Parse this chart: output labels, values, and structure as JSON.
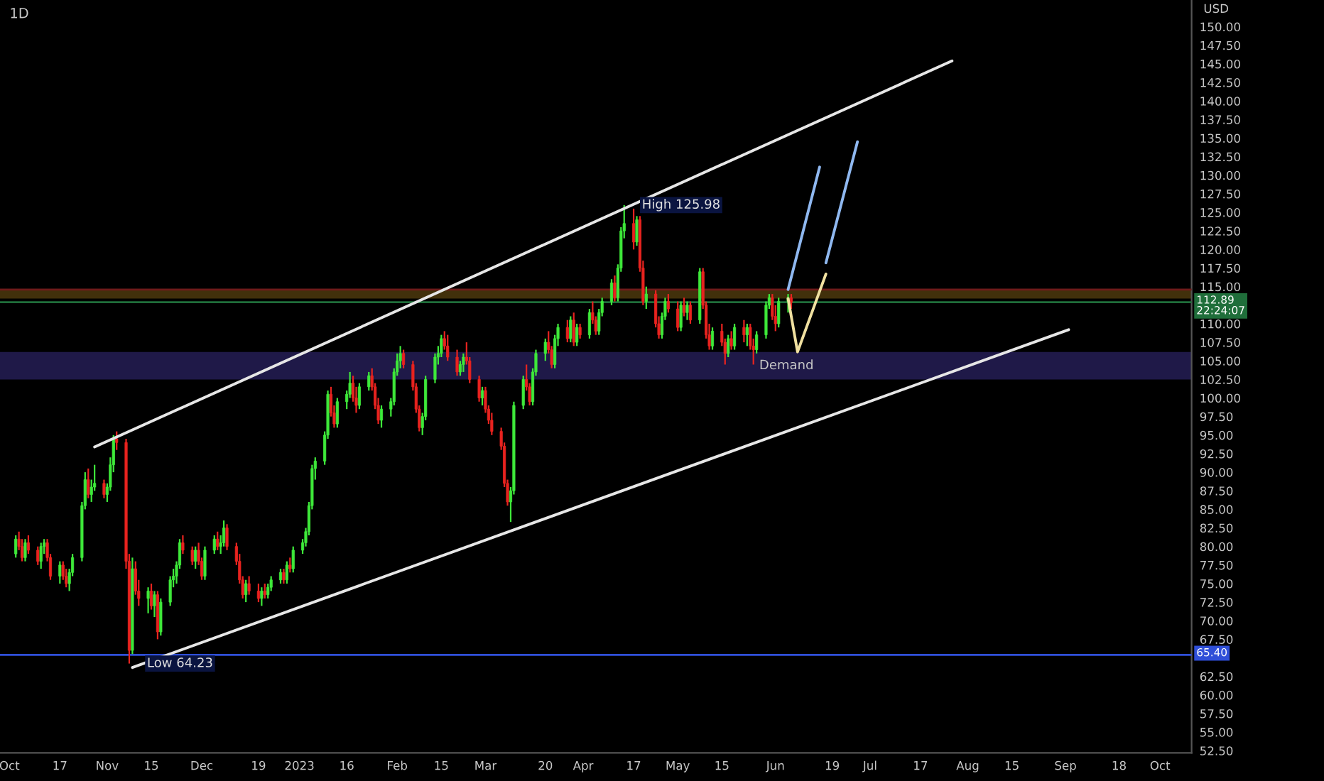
{
  "chart_data": {
    "type": "candlestick",
    "title": "1D",
    "ylabel": "USD",
    "x": [
      "2022-10-03",
      "2022-10-04",
      "2022-10-05",
      "2022-10-06",
      "2022-10-07",
      "2022-10-10",
      "2022-10-11",
      "2022-10-12",
      "2022-10-13",
      "2022-10-14",
      "2022-10-17",
      "2022-10-18",
      "2022-10-19",
      "2022-10-20",
      "2022-10-21",
      "2022-10-24",
      "2022-10-25",
      "2022-10-26",
      "2022-10-27",
      "2022-10-28",
      "2022-10-31",
      "2022-11-01",
      "2022-11-02",
      "2022-11-03",
      "2022-11-04",
      "2022-11-07",
      "2022-11-08",
      "2022-11-09",
      "2022-11-10",
      "2022-11-11",
      "2022-11-14",
      "2022-11-15",
      "2022-11-16",
      "2022-11-17",
      "2022-11-18",
      "2022-11-21",
      "2022-11-22",
      "2022-11-23",
      "2022-11-24",
      "2022-11-25",
      "2022-11-28",
      "2022-11-29",
      "2022-11-30",
      "2022-12-01",
      "2022-12-02",
      "2022-12-05",
      "2022-12-06",
      "2022-12-07",
      "2022-12-08",
      "2022-12-09",
      "2022-12-12",
      "2022-12-13",
      "2022-12-14",
      "2022-12-15",
      "2022-12-16",
      "2022-12-19",
      "2022-12-20",
      "2022-12-21",
      "2022-12-22",
      "2022-12-23",
      "2022-12-26",
      "2022-12-27",
      "2022-12-28",
      "2022-12-29",
      "2022-12-30",
      "2023-01-02",
      "2023-01-03",
      "2023-01-04",
      "2023-01-05",
      "2023-01-06",
      "2023-01-09",
      "2023-01-10",
      "2023-01-11",
      "2023-01-12",
      "2023-01-13",
      "2023-01-16",
      "2023-01-17",
      "2023-01-18",
      "2023-01-19",
      "2023-01-20",
      "2023-01-23",
      "2023-01-24",
      "2023-01-25",
      "2023-01-26",
      "2023-01-27",
      "2023-01-30",
      "2023-01-31",
      "2023-02-01",
      "2023-02-02",
      "2023-02-03",
      "2023-02-06",
      "2023-02-07",
      "2023-02-08",
      "2023-02-09",
      "2023-02-10",
      "2023-02-13",
      "2023-02-14",
      "2023-02-15",
      "2023-02-16",
      "2023-02-17",
      "2023-02-20",
      "2023-02-21",
      "2023-02-22",
      "2023-02-23",
      "2023-02-24",
      "2023-02-27",
      "2023-02-28",
      "2023-03-01",
      "2023-03-02",
      "2023-03-03",
      "2023-03-06",
      "2023-03-07",
      "2023-03-08",
      "2023-03-09",
      "2023-03-10",
      "2023-03-13",
      "2023-03-14",
      "2023-03-15",
      "2023-03-16",
      "2023-03-17",
      "2023-03-20",
      "2023-03-21",
      "2023-03-22",
      "2023-03-23",
      "2023-03-24",
      "2023-03-27",
      "2023-03-28",
      "2023-03-29",
      "2023-03-30",
      "2023-03-31",
      "2023-04-03",
      "2023-04-04",
      "2023-04-05",
      "2023-04-06",
      "2023-04-07",
      "2023-04-10",
      "2023-04-11",
      "2023-04-12",
      "2023-04-13",
      "2023-04-14",
      "2023-04-17",
      "2023-04-18",
      "2023-04-19",
      "2023-04-20",
      "2023-04-21",
      "2023-04-24",
      "2023-04-25",
      "2023-04-26",
      "2023-04-27",
      "2023-04-28",
      "2023-05-01",
      "2023-05-02",
      "2023-05-03",
      "2023-05-04",
      "2023-05-05",
      "2023-05-08",
      "2023-05-09",
      "2023-05-10",
      "2023-05-11",
      "2023-05-12",
      "2023-05-15",
      "2023-05-16",
      "2023-05-17",
      "2023-05-18",
      "2023-05-19",
      "2023-05-22",
      "2023-05-23",
      "2023-05-24",
      "2023-05-25",
      "2023-05-26",
      "2023-05-29",
      "2023-05-30",
      "2023-05-31",
      "2023-06-01",
      "2023-06-02",
      "2023-06-05",
      "2023-06-06"
    ],
    "ohlc": [
      [
        79,
        81.5,
        78.5,
        81
      ],
      [
        81,
        82,
        79.5,
        80
      ],
      [
        80,
        81,
        78,
        78.5
      ],
      [
        78.5,
        81,
        78,
        80.5
      ],
      [
        80.5,
        81.5,
        79,
        79.5
      ],
      [
        79.5,
        80,
        77.5,
        78
      ],
      [
        78,
        80.5,
        77,
        80
      ],
      [
        80,
        81,
        79,
        80.5
      ],
      [
        80.5,
        81,
        78,
        78.5
      ],
      [
        78.5,
        79,
        75.5,
        76
      ],
      [
        76,
        78,
        75,
        77.5
      ],
      [
        77.5,
        78,
        75.5,
        76
      ],
      [
        76,
        77,
        74.5,
        75
      ],
      [
        75,
        77,
        74,
        76.5
      ],
      [
        76.5,
        79,
        76,
        78.5
      ],
      [
        78.5,
        86,
        78,
        85.5
      ],
      [
        85.5,
        90,
        85,
        89
      ],
      [
        89,
        90.5,
        86.5,
        87
      ],
      [
        87,
        89,
        86,
        88
      ],
      [
        88,
        91,
        87.5,
        88.5
      ],
      [
        88.5,
        89,
        86.5,
        87
      ],
      [
        87,
        88.5,
        86,
        88
      ],
      [
        88,
        92,
        87.5,
        91
      ],
      [
        91,
        95,
        90,
        94.5
      ],
      [
        94.5,
        95.5,
        93,
        94
      ],
      [
        94,
        94.5,
        77,
        78
      ],
      [
        78,
        79,
        64.23,
        66
      ],
      [
        66,
        78.5,
        65.5,
        77
      ],
      [
        77,
        78,
        73.5,
        74
      ],
      [
        74,
        75.5,
        72,
        73
      ],
      [
        73,
        74.5,
        71,
        74
      ],
      [
        74,
        75,
        71.5,
        72
      ],
      [
        72,
        74,
        70.5,
        73.5
      ],
      [
        73.5,
        74,
        67.5,
        68.5
      ],
      [
        68.5,
        73,
        68,
        72.5
      ],
      [
        72.5,
        76,
        72,
        75.5
      ],
      [
        75.5,
        77,
        74.5,
        76
      ],
      [
        76,
        78,
        75,
        77.5
      ],
      [
        77.5,
        81,
        77,
        80.5
      ],
      [
        80.5,
        81.5,
        79,
        79.5
      ],
      [
        79.5,
        80,
        77.5,
        78
      ],
      [
        78,
        80,
        77,
        79.5
      ],
      [
        79.5,
        80.5,
        77.5,
        78
      ],
      [
        78,
        78.5,
        75.5,
        76
      ],
      [
        76,
        80,
        75.5,
        79.5
      ],
      [
        79.5,
        81.5,
        79,
        81
      ],
      [
        81,
        82,
        79.5,
        80
      ],
      [
        80,
        81.5,
        79,
        80.5
      ],
      [
        80.5,
        83.5,
        80,
        82.5
      ],
      [
        82.5,
        83,
        79.5,
        80
      ],
      [
        80,
        80.5,
        77.5,
        78
      ],
      [
        78,
        79,
        75,
        75.5
      ],
      [
        75.5,
        76,
        73,
        73.5
      ],
      [
        73.5,
        75.5,
        72.5,
        75
      ],
      [
        75,
        76,
        73.5,
        74
      ],
      [
        74,
        75,
        72.5,
        73
      ],
      [
        73,
        74.5,
        72,
        74
      ],
      [
        74,
        75,
        73,
        73.5
      ],
      [
        73.5,
        75,
        73,
        74.5
      ],
      [
        74.5,
        76,
        74,
        75.5
      ],
      [
        75.5,
        77,
        75,
        76.5
      ],
      [
        76.5,
        77,
        75,
        75.5
      ],
      [
        75.5,
        78,
        75,
        77.5
      ],
      [
        77.5,
        78.5,
        76.5,
        77
      ],
      [
        77,
        80,
        76.5,
        79.5
      ],
      [
        79.5,
        81,
        79,
        80.5
      ],
      [
        80.5,
        82.5,
        80,
        82
      ],
      [
        82,
        86,
        81.5,
        85.5
      ],
      [
        85.5,
        91,
        85,
        90.5
      ],
      [
        90.5,
        92,
        89,
        91.5
      ],
      [
        91.5,
        95.5,
        91,
        95
      ],
      [
        95,
        101,
        94.5,
        100.5
      ],
      [
        100.5,
        101.5,
        97.5,
        98
      ],
      [
        98,
        99,
        96,
        96.5
      ],
      [
        96.5,
        100,
        96,
        99.5
      ],
      [
        99.5,
        101,
        98.5,
        100.5
      ],
      [
        100.5,
        103.5,
        100,
        102
      ],
      [
        102,
        103,
        99.5,
        100
      ],
      [
        100,
        101.5,
        98,
        99
      ],
      [
        99,
        102,
        98.5,
        101.5
      ],
      [
        101.5,
        103.5,
        101,
        103
      ],
      [
        103,
        104,
        101,
        101.5
      ],
      [
        101.5,
        102,
        98.5,
        99
      ],
      [
        99,
        100,
        96.5,
        97
      ],
      [
        97,
        99,
        96,
        98.5
      ],
      [
        98.5,
        100,
        97.5,
        99.5
      ],
      [
        99.5,
        104,
        99,
        103.5
      ],
      [
        103.5,
        106,
        103,
        105
      ],
      [
        105,
        107,
        104,
        106
      ],
      [
        106,
        106.5,
        104,
        104.5
      ],
      [
        104.5,
        105,
        101,
        101.5
      ],
      [
        101.5,
        102,
        98,
        98.5
      ],
      [
        98.5,
        99,
        95.5,
        96
      ],
      [
        96,
        98,
        95,
        97.5
      ],
      [
        97.5,
        103,
        97,
        102.5
      ],
      [
        102.5,
        106,
        102,
        105.5
      ],
      [
        105.5,
        107,
        104.5,
        106
      ],
      [
        106,
        108.5,
        105.5,
        108
      ],
      [
        108,
        109,
        106.5,
        107
      ],
      [
        107,
        108.5,
        105,
        105.5
      ],
      [
        105.5,
        106.5,
        103,
        103.5
      ],
      [
        103.5,
        105,
        103,
        104.5
      ],
      [
        104.5,
        106,
        103.5,
        105.5
      ],
      [
        105.5,
        107.5,
        104.5,
        105
      ],
      [
        105,
        105.5,
        102,
        102.5
      ],
      [
        102.5,
        103,
        99.5,
        100
      ],
      [
        100,
        101.5,
        99,
        101
      ],
      [
        101,
        101.5,
        98,
        98.5
      ],
      [
        98.5,
        99,
        96.5,
        97
      ],
      [
        97,
        98,
        95,
        95.5
      ],
      [
        95.5,
        96,
        93,
        93.5
      ],
      [
        93.5,
        94,
        88,
        88.5
      ],
      [
        88.5,
        89,
        85.5,
        86
      ],
      [
        86,
        88,
        83.3,
        87.5
      ],
      [
        87.5,
        99.5,
        87,
        99
      ],
      [
        99,
        103,
        98.5,
        102.5
      ],
      [
        102.5,
        104.5,
        101,
        101.5
      ],
      [
        101.5,
        102,
        99,
        99.5
      ],
      [
        99.5,
        104,
        99,
        103.5
      ],
      [
        103.5,
        106.5,
        103,
        106
      ],
      [
        106,
        108,
        105,
        107.5
      ],
      [
        107.5,
        109,
        106,
        106.5
      ],
      [
        106.5,
        107,
        104,
        104.5
      ],
      [
        104.5,
        108.5,
        104,
        108
      ],
      [
        108,
        110,
        107,
        109.5
      ],
      [
        109.5,
        110.5,
        107.5,
        108
      ],
      [
        108,
        111,
        107.5,
        110.5
      ],
      [
        110.5,
        111.5,
        107,
        107.5
      ],
      [
        107.5,
        110,
        107,
        109.5
      ],
      [
        109.5,
        110,
        108,
        108.5
      ],
      [
        108.5,
        112,
        108,
        111.5
      ],
      [
        111.5,
        113,
        110,
        110.5
      ],
      [
        110.5,
        111,
        108.5,
        109
      ],
      [
        109,
        112,
        108.5,
        111.5
      ],
      [
        111.5,
        113.5,
        111,
        113
      ],
      [
        113,
        116,
        112.5,
        115.5
      ],
      [
        115.5,
        116.5,
        113,
        113.5
      ],
      [
        113.5,
        118,
        113,
        117.5
      ],
      [
        117.5,
        123,
        117,
        122.5
      ],
      [
        122.5,
        125.98,
        121.5,
        123.5
      ],
      [
        123.5,
        125.5,
        120,
        121
      ],
      [
        121,
        124.5,
        120.5,
        124
      ],
      [
        124,
        124.5,
        117,
        117.5
      ],
      [
        117.5,
        118.5,
        112.5,
        113
      ],
      [
        113,
        115,
        112,
        114
      ],
      [
        114,
        114.5,
        109.5,
        110
      ],
      [
        110,
        111,
        108,
        108.5
      ],
      [
        108.5,
        111.5,
        108,
        111
      ],
      [
        111,
        113.5,
        110.5,
        113
      ],
      [
        113,
        114,
        111.5,
        112
      ],
      [
        112,
        113,
        109,
        109.5
      ],
      [
        109.5,
        113,
        109,
        112.5
      ],
      [
        112.5,
        113.5,
        111,
        111.5
      ],
      [
        111.5,
        113,
        110.5,
        112.5
      ],
      [
        112.5,
        113,
        110,
        110.5
      ],
      [
        110.5,
        117.5,
        110,
        117
      ],
      [
        117,
        117.5,
        112,
        112.5
      ],
      [
        112.5,
        113,
        108,
        108.5
      ],
      [
        108.5,
        110,
        106.5,
        107
      ],
      [
        107,
        109.5,
        106.5,
        109
      ],
      [
        109,
        110,
        107,
        107.5
      ],
      [
        107.5,
        108,
        104.5,
        106
      ],
      [
        106,
        108.5,
        105.5,
        108
      ],
      [
        108,
        109,
        106.5,
        107
      ],
      [
        107,
        110,
        106.5,
        109.5
      ],
      [
        109.5,
        110.5,
        107.5,
        108.5
      ],
      [
        108.5,
        110,
        107,
        109.5
      ],
      [
        109.5,
        110,
        106.5,
        107
      ],
      [
        107,
        108,
        104.5,
        106.5
      ],
      [
        106.5,
        109,
        106,
        108.5
      ],
      [
        108.5,
        113,
        108,
        112.5
      ],
      [
        112.5,
        114,
        112,
        113.5
      ],
      [
        113.5,
        114,
        110.5,
        111
      ],
      [
        111,
        112.5,
        109,
        110
      ],
      [
        110,
        113.5,
        109.5,
        113
      ],
      [
        113,
        114,
        111.5,
        113.5
      ],
      [
        113.5,
        114,
        112,
        112.89
      ]
    ],
    "colors": [
      "#3ee83a",
      "#e8231f",
      "#e8231f",
      "#3ee83a",
      "#e8231f",
      "#e8231f",
      "#3ee83a",
      "#3ee83a",
      "#e8231f",
      "#e8231f",
      "#3ee83a",
      "#e8231f",
      "#e8231f",
      "#3ee83a",
      "#3ee83a",
      "#3ee83a",
      "#3ee83a",
      "#e8231f",
      "#3ee83a",
      "#3ee83a",
      "#e8231f",
      "#3ee83a",
      "#3ee83a",
      "#3ee83a",
      "#e8231f",
      "#e8231f",
      "#e8231f",
      "#3ee83a",
      "#e8231f",
      "#e8231f",
      "#3ee83a",
      "#e8231f",
      "#3ee83a",
      "#e8231f",
      "#3ee83a",
      "#3ee83a",
      "#3ee83a",
      "#3ee83a",
      "#3ee83a",
      "#e8231f",
      "#e8231f",
      "#3ee83a",
      "#e8231f",
      "#e8231f",
      "#3ee83a",
      "#3ee83a",
      "#e8231f",
      "#3ee83a",
      "#3ee83a",
      "#e8231f",
      "#e8231f",
      "#e8231f",
      "#e8231f",
      "#3ee83a",
      "#e8231f",
      "#e8231f",
      "#3ee83a",
      "#e8231f",
      "#3ee83a",
      "#3ee83a",
      "#3ee83a",
      "#e8231f",
      "#3ee83a",
      "#e8231f",
      "#3ee83a",
      "#3ee83a",
      "#3ee83a",
      "#3ee83a",
      "#3ee83a",
      "#3ee83a",
      "#3ee83a",
      "#3ee83a",
      "#e8231f",
      "#e8231f",
      "#3ee83a",
      "#3ee83a",
      "#3ee83a",
      "#e8231f",
      "#e8231f",
      "#3ee83a",
      "#3ee83a",
      "#e8231f",
      "#e8231f",
      "#e8231f",
      "#3ee83a",
      "#3ee83a",
      "#3ee83a",
      "#3ee83a",
      "#3ee83a",
      "#e8231f",
      "#e8231f",
      "#e8231f",
      "#e8231f",
      "#3ee83a",
      "#3ee83a",
      "#3ee83a",
      "#3ee83a",
      "#3ee83a",
      "#e8231f",
      "#e8231f",
      "#e8231f",
      "#3ee83a",
      "#3ee83a",
      "#e8231f",
      "#e8231f",
      "#e8231f",
      "#3ee83a",
      "#e8231f",
      "#e8231f",
      "#e8231f",
      "#e8231f",
      "#e8231f",
      "#e8231f",
      "#3ee83a",
      "#3ee83a",
      "#3ee83a",
      "#e8231f",
      "#e8231f",
      "#3ee83a",
      "#3ee83a",
      "#3ee83a",
      "#e8231f",
      "#e8231f",
      "#3ee83a",
      "#3ee83a",
      "#e8231f",
      "#3ee83a",
      "#e8231f",
      "#3ee83a",
      "#e8231f",
      "#3ee83a",
      "#e8231f",
      "#e8231f",
      "#3ee83a",
      "#3ee83a",
      "#3ee83a",
      "#e8231f",
      "#3ee83a",
      "#3ee83a",
      "#3ee83a",
      "#e8231f",
      "#3ee83a",
      "#e8231f",
      "#e8231f",
      "#3ee83a",
      "#e8231f",
      "#e8231f",
      "#3ee83a",
      "#3ee83a",
      "#e8231f",
      "#e8231f",
      "#3ee83a",
      "#e8231f",
      "#3ee83a",
      "#e8231f",
      "#3ee83a",
      "#e8231f",
      "#e8231f",
      "#e8231f",
      "#3ee83a",
      "#e8231f",
      "#e8231f",
      "#3ee83a",
      "#e8231f",
      "#3ee83a",
      "#e8231f",
      "#3ee83a",
      "#e8231f",
      "#e8231f",
      "#3ee83a",
      "#3ee83a",
      "#3ee83a",
      "#e8231f",
      "#e8231f",
      "#3ee83a",
      "#3ee83a",
      "#e8231f"
    ],
    "series": [
      {
        "type": "line",
        "color": "#e6e6e6",
        "x": [
          "2022-10-28",
          "2023-07-27"
        ],
        "values": [
          93.4,
          145.4
        ]
      },
      {
        "type": "line",
        "color": "#e6e6e6",
        "x": [
          "2022-11-09",
          "2023-09-02"
        ],
        "values": [
          63.7,
          109.2
        ]
      },
      {
        "type": "line",
        "color": "#f0e0a0",
        "x": [
          "2023-06-05",
          "2023-06-08",
          "2023-06-17"
        ],
        "values": [
          113.4,
          106.2,
          116.7
        ]
      },
      {
        "type": "line",
        "color": "#8fb8f0",
        "x": [
          "2023-06-05",
          "2023-06-15"
        ],
        "values": [
          114.6,
          131.1
        ]
      },
      {
        "type": "line",
        "color": "#8fb8f0",
        "x": [
          "2023-06-17",
          "2023-06-27"
        ],
        "values": [
          118.2,
          134.5
        ]
      }
    ],
    "ref_lines": [
      {
        "axis": "y",
        "value": 65.4,
        "label": "65.40",
        "color": "#2f4fd8",
        "line_style": "solid"
      },
      {
        "axis": "y",
        "value": 114.6,
        "label": null,
        "color": "#6e1a1a",
        "line_style": "solid"
      },
      {
        "axis": "y",
        "value": 112.89,
        "label": "112.89\n22:24:07",
        "color": "#1f6e3a",
        "line_style": "solid"
      }
    ],
    "bands": [
      {
        "axis": "y",
        "from": 102.5,
        "to": 106.2,
        "label": "Demand",
        "color": "#2c2466"
      },
      {
        "axis": "y",
        "from": 113.4,
        "to": 114.6,
        "label": null,
        "color": "#5c4410"
      }
    ],
    "annotations": [
      {
        "text": "High 125.98",
        "x": "2023-04-14",
        "y": 125.98
      },
      {
        "text": "Low 64.23",
        "x": "2022-11-08",
        "y": 64.23
      }
    ],
    "xlim": [
      "2022-09-28",
      "2023-10-11"
    ],
    "xticks": [
      {
        "value": "2022-10-01",
        "label": "Oct"
      },
      {
        "value": "2022-10-17",
        "label": "17"
      },
      {
        "value": "2022-11-01",
        "label": "Nov"
      },
      {
        "value": "2022-11-15",
        "label": "15"
      },
      {
        "value": "2022-12-01",
        "label": "Dec"
      },
      {
        "value": "2022-12-19",
        "label": "19"
      },
      {
        "value": "2023-01-01",
        "label": "2023"
      },
      {
        "value": "2023-01-16",
        "label": "16"
      },
      {
        "value": "2023-02-01",
        "label": "Feb"
      },
      {
        "value": "2023-02-15",
        "label": "15"
      },
      {
        "value": "2023-03-01",
        "label": "Mar"
      },
      {
        "value": "2023-03-20",
        "label": "20"
      },
      {
        "value": "2023-04-01",
        "label": "Apr"
      },
      {
        "value": "2023-04-17",
        "label": "17"
      },
      {
        "value": "2023-05-01",
        "label": "May"
      },
      {
        "value": "2023-05-15",
        "label": "15"
      },
      {
        "value": "2023-06-01",
        "label": "Jun"
      },
      {
        "value": "2023-06-19",
        "label": "19"
      },
      {
        "value": "2023-07-01",
        "label": "Jul"
      },
      {
        "value": "2023-07-17",
        "label": "17"
      },
      {
        "value": "2023-08-01",
        "label": "Aug"
      },
      {
        "value": "2023-08-15",
        "label": "15"
      },
      {
        "value": "2023-09-01",
        "label": "Sep"
      },
      {
        "value": "2023-09-18",
        "label": "18"
      },
      {
        "value": "2023-10-01",
        "label": "Oct"
      }
    ],
    "ylim": [
      52.2,
      153.6
    ],
    "yticks": [
      {
        "value": 52.5,
        "label": "52.50"
      },
      {
        "value": 55,
        "label": "55.00"
      },
      {
        "value": 57.5,
        "label": "57.50"
      },
      {
        "value": 60,
        "label": "60.00"
      },
      {
        "value": 62.5,
        "label": "62.50"
      },
      {
        "value": 67.5,
        "label": "67.50"
      },
      {
        "value": 70,
        "label": "70.00"
      },
      {
        "value": 72.5,
        "label": "72.50"
      },
      {
        "value": 75,
        "label": "75.00"
      },
      {
        "value": 77.5,
        "label": "77.50"
      },
      {
        "value": 80,
        "label": "80.00"
      },
      {
        "value": 82.5,
        "label": "82.50"
      },
      {
        "value": 85,
        "label": "85.00"
      },
      {
        "value": 87.5,
        "label": "87.50"
      },
      {
        "value": 90,
        "label": "90.00"
      },
      {
        "value": 92.5,
        "label": "92.50"
      },
      {
        "value": 95,
        "label": "95.00"
      },
      {
        "value": 97.5,
        "label": "97.50"
      },
      {
        "value": 100,
        "label": "100.00"
      },
      {
        "value": 102.5,
        "label": "102.50"
      },
      {
        "value": 105,
        "label": "105.00"
      },
      {
        "value": 107.5,
        "label": "107.50"
      },
      {
        "value": 110,
        "label": "110.00"
      },
      {
        "value": 115,
        "label": "115.00"
      },
      {
        "value": 117.5,
        "label": "117.50"
      },
      {
        "value": 120,
        "label": "120.00"
      },
      {
        "value": 122.5,
        "label": "122.50"
      },
      {
        "value": 125,
        "label": "125.00"
      },
      {
        "value": 127.5,
        "label": "127.50"
      },
      {
        "value": 130,
        "label": "130.00"
      },
      {
        "value": 132.5,
        "label": "132.50"
      },
      {
        "value": 135,
        "label": "135.00"
      },
      {
        "value": 137.5,
        "label": "137.50"
      },
      {
        "value": 140,
        "label": "140.00"
      },
      {
        "value": 142.5,
        "label": "142.50"
      },
      {
        "value": 145,
        "label": "145.00"
      },
      {
        "value": 147.5,
        "label": "147.50"
      },
      {
        "value": 150,
        "label": "150.00"
      }
    ],
    "grid": false,
    "legend": false
  }
}
